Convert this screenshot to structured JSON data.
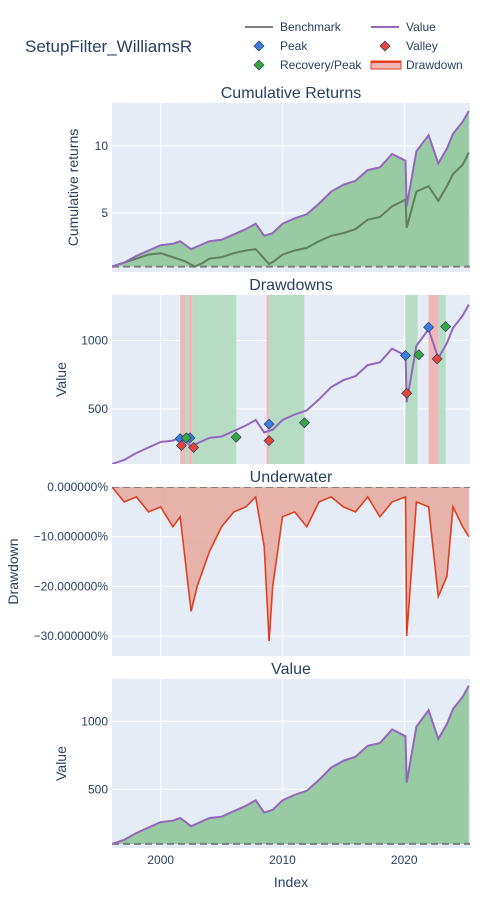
{
  "page": {
    "title": "SetupFilter_WilliamsR"
  },
  "legend": {
    "items": [
      {
        "label": "Benchmark",
        "kind": "line",
        "color": "#7f7f7f"
      },
      {
        "label": "Value",
        "kind": "line",
        "color": "#9467bd"
      },
      {
        "label": "Peak",
        "kind": "diamond",
        "color": "#3d7be5"
      },
      {
        "label": "Valley",
        "kind": "diamond",
        "color": "#e5453d"
      },
      {
        "label": "Recovery/Peak",
        "kind": "diamond",
        "color": "#37a63f"
      },
      {
        "label": "Drawdown",
        "kind": "band",
        "color": "#e0401f"
      }
    ]
  },
  "x_axis": {
    "label": "Index",
    "ticks": [
      "2000",
      "2010",
      "2020"
    ],
    "range": [
      1996,
      2025.4
    ]
  },
  "colors": {
    "panel_bg": "#e5ecf6",
    "grid": "#ffffff",
    "value": "#9467bd",
    "benchmark": "#5f7f5f",
    "green_fill": "#8fc79a",
    "recovery_band": "#b7dcc4",
    "drawdown_band": "#f1b7b8",
    "underwater": "#e0401f",
    "underwater_fill": "#e8a89c",
    "baseline": "#7f7f7f"
  },
  "chart_data": [
    {
      "type": "line",
      "title": "Cumulative Returns",
      "ylabel": "Cumulative returns",
      "ylim": [
        0.6,
        13.2
      ],
      "yticks": [
        "5",
        "10"
      ],
      "baseline": 1,
      "series": [
        {
          "name": "Value",
          "x": [
            1996,
            1997,
            1998,
            1999,
            2000,
            2001,
            2001.6,
            2002.5,
            2003,
            2004,
            2005,
            2006,
            2007,
            2007.8,
            2008.5,
            2009.2,
            2010,
            2011,
            2012,
            2013,
            2014,
            2015,
            2016,
            2017,
            2018,
            2019,
            2020.1,
            2020.2,
            2021,
            2022,
            2022.8,
            2023.5,
            2024,
            2024.8,
            2025.3
          ],
          "values": [
            1.0,
            1.3,
            1.8,
            2.2,
            2.6,
            2.7,
            2.9,
            2.3,
            2.5,
            2.9,
            3.0,
            3.4,
            3.8,
            4.2,
            3.3,
            3.5,
            4.2,
            4.6,
            4.9,
            5.7,
            6.6,
            7.1,
            7.4,
            8.2,
            8.4,
            9.4,
            8.9,
            5.5,
            9.6,
            10.8,
            8.7,
            9.8,
            10.9,
            11.8,
            12.6
          ]
        },
        {
          "name": "Benchmark",
          "x": [
            1996,
            1997,
            1998,
            1999,
            2000,
            2001,
            2002,
            2002.8,
            2003.5,
            2004,
            2005,
            2006,
            2007,
            2007.8,
            2008.9,
            2009.3,
            2010,
            2011,
            2012,
            2013,
            2014,
            2015,
            2016,
            2017,
            2018,
            2019,
            2020.1,
            2020.2,
            2021,
            2022,
            2022.8,
            2023.5,
            2024,
            2024.8,
            2025.3
          ],
          "values": [
            1.0,
            1.3,
            1.6,
            1.9,
            2.0,
            1.7,
            1.4,
            1.0,
            1.3,
            1.6,
            1.7,
            2.0,
            2.2,
            2.3,
            1.2,
            1.4,
            1.9,
            2.2,
            2.4,
            2.9,
            3.3,
            3.5,
            3.8,
            4.5,
            4.7,
            5.5,
            6.0,
            3.9,
            6.6,
            7.0,
            5.9,
            7.0,
            7.9,
            8.6,
            9.5
          ]
        }
      ]
    },
    {
      "type": "line",
      "title": "Drawdowns",
      "ylabel": "Value",
      "ylim": [
        100,
        1330
      ],
      "yticks": [
        "500",
        "1000"
      ],
      "series": [
        {
          "name": "Value",
          "x": [
            1996,
            1997,
            1998,
            1999,
            2000,
            2001,
            2001.6,
            2002.5,
            2003,
            2004,
            2005,
            2006,
            2007,
            2007.8,
            2008.5,
            2009.2,
            2010,
            2011,
            2012,
            2013,
            2014,
            2015,
            2016,
            2017,
            2018,
            2019,
            2020.1,
            2020.2,
            2021,
            2022,
            2022.8,
            2023.5,
            2024,
            2024.8,
            2025.3
          ],
          "values": [
            100,
            130,
            180,
            220,
            260,
            270,
            290,
            230,
            250,
            290,
            300,
            340,
            380,
            420,
            330,
            350,
            420,
            460,
            490,
            570,
            660,
            710,
            740,
            820,
            840,
            940,
            890,
            550,
            960,
            1080,
            870,
            980,
            1090,
            1180,
            1260
          ]
        }
      ],
      "bands": [
        {
          "kind": "drawdown",
          "x": [
            2001.6,
            2002.0
          ]
        },
        {
          "kind": "recovery",
          "x": [
            2002.0,
            2002.3
          ]
        },
        {
          "kind": "drawdown",
          "x": [
            2002.3,
            2002.6
          ]
        },
        {
          "kind": "recovery",
          "x": [
            2002.6,
            2006.2
          ]
        },
        {
          "kind": "drawdown",
          "x": [
            2008.7,
            2008.9
          ]
        },
        {
          "kind": "recovery",
          "x": [
            2008.9,
            2011.8
          ]
        },
        {
          "kind": "recovery",
          "x": [
            2020.1,
            2021.1
          ]
        },
        {
          "kind": "drawdown",
          "x": [
            2022.0,
            2022.8
          ]
        },
        {
          "kind": "recovery",
          "x": [
            2022.8,
            2023.4
          ]
        }
      ],
      "markers": {
        "peak": [
          {
            "x": 2001.6,
            "y": 285
          },
          {
            "x": 2002.4,
            "y": 290
          },
          {
            "x": 2008.9,
            "y": 390
          },
          {
            "x": 2020.1,
            "y": 890
          },
          {
            "x": 2022.0,
            "y": 1095
          }
        ],
        "valley": [
          {
            "x": 2001.7,
            "y": 235
          },
          {
            "x": 2002.7,
            "y": 220
          },
          {
            "x": 2008.9,
            "y": 270
          },
          {
            "x": 2020.2,
            "y": 615
          },
          {
            "x": 2022.7,
            "y": 865
          }
        ],
        "recovery": [
          {
            "x": 2002.1,
            "y": 290
          },
          {
            "x": 2006.2,
            "y": 295
          },
          {
            "x": 2011.8,
            "y": 400
          },
          {
            "x": 2021.2,
            "y": 895
          },
          {
            "x": 2023.4,
            "y": 1100
          }
        ]
      }
    },
    {
      "type": "area",
      "title": "Underwater",
      "ylabel": "Drawdown",
      "ylim": [
        -34,
        0
      ],
      "yticks": [
        "0.000000%",
        "−10.000000%",
        "−20.000000%",
        "−30.000000%"
      ],
      "ytick_values": [
        0,
        -10,
        -20,
        -30
      ],
      "series": [
        {
          "name": "Drawdown",
          "x": [
            1996,
            1997,
            1998,
            1999,
            2000,
            2001,
            2001.6,
            2002.5,
            2003,
            2004,
            2005,
            2006,
            2007,
            2007.8,
            2008.5,
            2008.9,
            2009.2,
            2010,
            2011,
            2012,
            2013,
            2014,
            2015,
            2016,
            2017,
            2018,
            2019,
            2020.1,
            2020.2,
            2021,
            2022,
            2022.8,
            2023.5,
            2024,
            2024.8,
            2025.3
          ],
          "values": [
            0,
            -3,
            -2,
            -5,
            -4,
            -8,
            -6,
            -25,
            -20,
            -13,
            -8,
            -5,
            -4,
            -2,
            -12,
            -31,
            -20,
            -6,
            -5,
            -8,
            -3,
            -2,
            -4,
            -5,
            -2,
            -6,
            -3,
            -2,
            -30,
            -3,
            -4,
            -22,
            -18,
            -4,
            -8,
            -10
          ]
        }
      ]
    },
    {
      "type": "area",
      "title": "Value",
      "ylabel": "Value",
      "xlabel": "Index",
      "ylim": [
        70,
        1310
      ],
      "yticks": [
        "500",
        "1000"
      ],
      "baseline": 100,
      "series": [
        {
          "name": "Value",
          "x": [
            1996,
            1997,
            1998,
            1999,
            2000,
            2001,
            2001.6,
            2002.5,
            2003,
            2004,
            2005,
            2006,
            2007,
            2007.8,
            2008.5,
            2009.2,
            2010,
            2011,
            2012,
            2013,
            2014,
            2015,
            2016,
            2017,
            2018,
            2019,
            2020.1,
            2020.2,
            2021,
            2022,
            2022.8,
            2023.5,
            2024,
            2024.8,
            2025.3
          ],
          "values": [
            100,
            130,
            180,
            220,
            260,
            270,
            290,
            230,
            250,
            290,
            300,
            340,
            380,
            420,
            330,
            350,
            420,
            460,
            490,
            570,
            660,
            710,
            740,
            820,
            840,
            940,
            890,
            550,
            960,
            1080,
            870,
            980,
            1090,
            1180,
            1260
          ]
        }
      ]
    }
  ]
}
